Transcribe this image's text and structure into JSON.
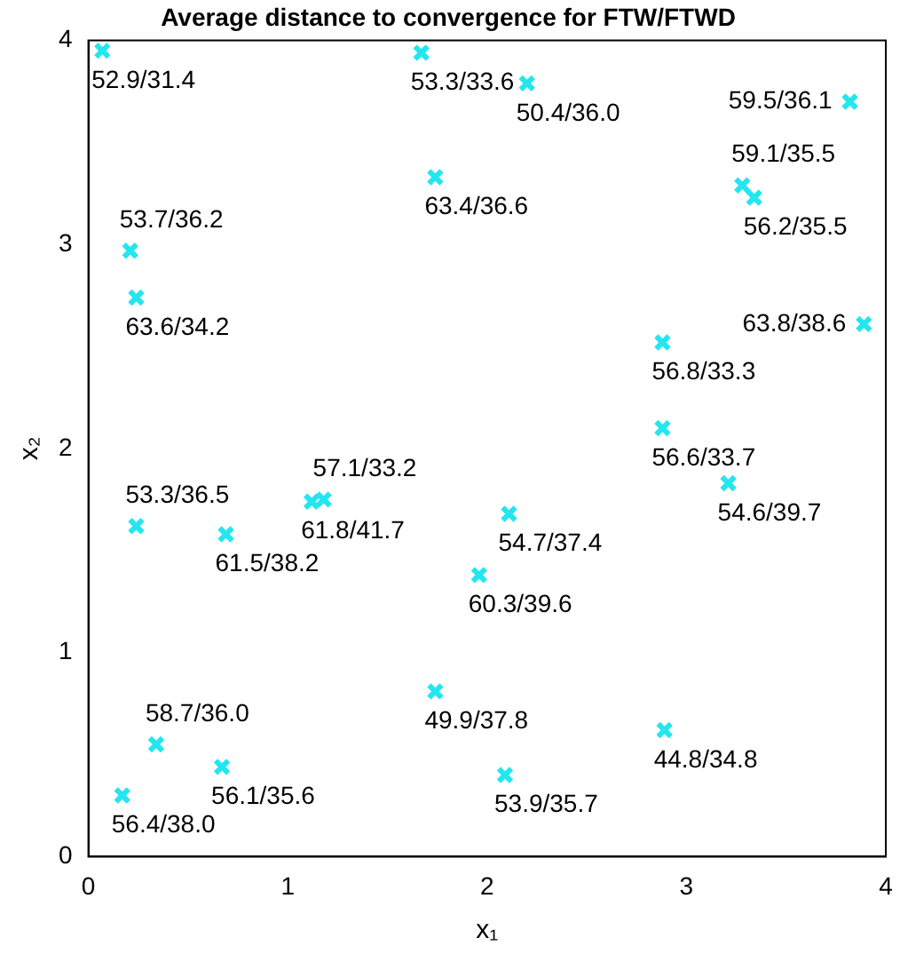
{
  "chart_data": {
    "type": "scatter",
    "title": "Average distance to convergence for FTW/FTWD",
    "xlabel": "x₁",
    "ylabel": "x₂",
    "xlim": [
      0,
      4
    ],
    "ylim": [
      0,
      4
    ],
    "xticks": [
      0,
      1,
      2,
      3,
      4
    ],
    "yticks": [
      0,
      1,
      2,
      3,
      4
    ],
    "grid": false,
    "legend": false,
    "marker": "cross",
    "series": [
      {
        "color": "#22e6f0",
        "x": [
          0.07,
          1.67,
          2.2,
          3.82,
          1.74,
          3.28,
          3.34,
          0.21,
          0.24,
          2.88,
          3.89,
          2.88,
          3.21,
          1.12,
          1.18,
          0.24,
          0.69,
          2.11,
          1.96,
          1.74,
          0.34,
          0.67,
          0.17,
          2.09,
          2.89
        ],
        "values": [
          3.95,
          3.94,
          3.79,
          3.7,
          3.33,
          3.29,
          3.23,
          2.97,
          2.74,
          2.52,
          2.61,
          2.1,
          1.83,
          1.74,
          1.75,
          1.62,
          1.58,
          1.68,
          1.38,
          0.81,
          0.55,
          0.44,
          0.3,
          0.4,
          0.62
        ],
        "value_labels": [
          "52.9/31.4",
          "53.3/33.6",
          "50.4/36.0",
          "59.5/36.1",
          "63.4/36.6",
          "59.1/35.5",
          "56.2/35.5",
          "53.7/36.2",
          "63.6/34.2",
          "56.8/33.3",
          "63.8/38.6",
          "56.6/33.7",
          "54.6/39.7",
          "61.8/41.7",
          "57.1/33.2",
          "53.3/36.5",
          "61.5/38.2",
          "54.7/37.4",
          "60.3/39.6",
          "49.9/37.8",
          "58.7/36.0",
          "56.1/35.6",
          "56.4/38.0",
          "53.9/35.7",
          "44.8/34.8"
        ]
      }
    ]
  }
}
